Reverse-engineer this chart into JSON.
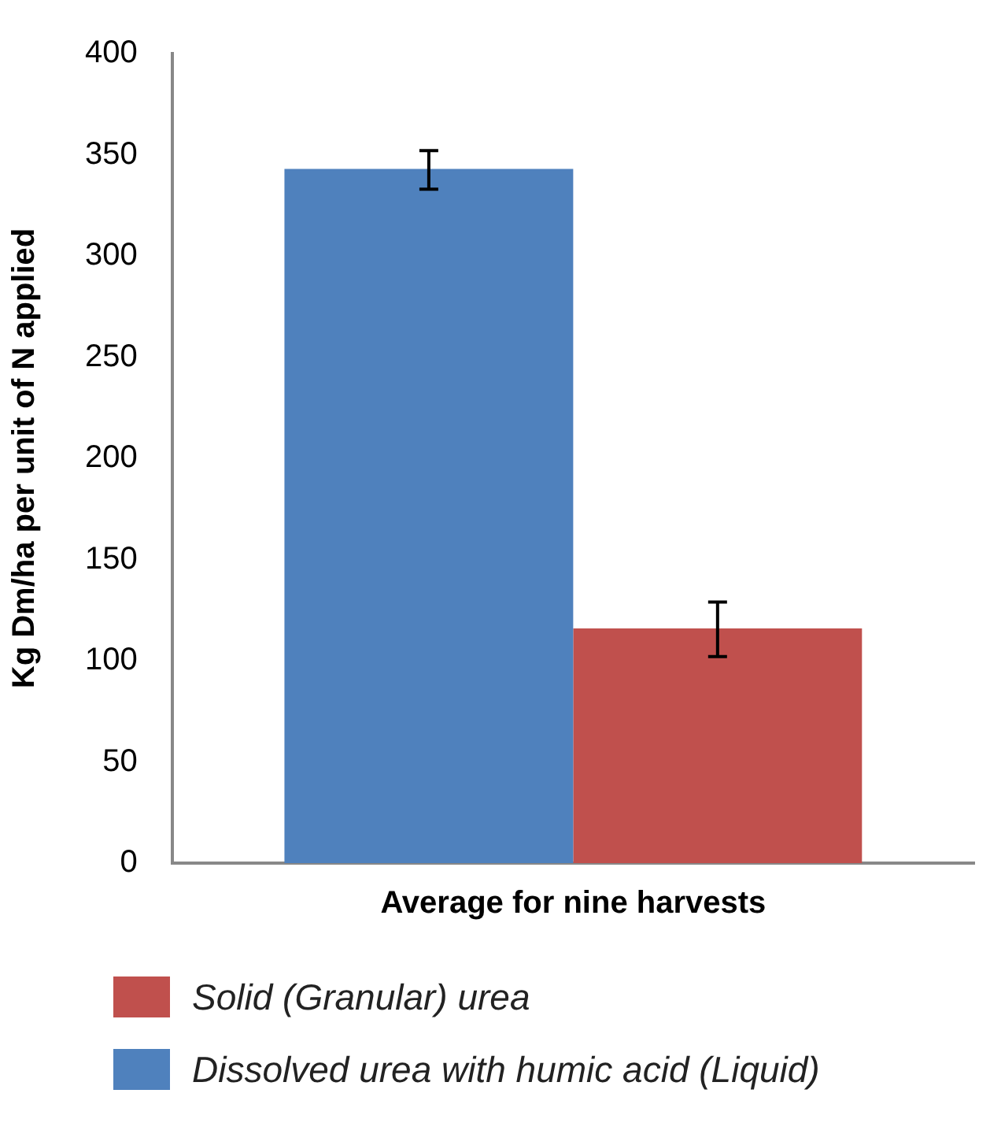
{
  "chart_data": {
    "type": "bar",
    "categories": [
      "Average for nine harvests"
    ],
    "ylabel": "Kg Dm/ha per unit of N applied",
    "series": [
      {
        "name": "Dissolved urea with humic acid (Liquid)",
        "color": "#4f81bd",
        "values": [
          343
        ],
        "errors": [
          [
            333,
            352
          ]
        ]
      },
      {
        "name": "Solid (Granular) urea",
        "color": "#c0504d",
        "values": [
          116
        ],
        "errors": [
          [
            102,
            129
          ]
        ]
      }
    ],
    "ylim": [
      0,
      400
    ],
    "yticks": [
      0,
      50,
      100,
      150,
      200,
      250,
      300,
      350,
      400
    ],
    "grid": false,
    "legend": "bottom"
  }
}
